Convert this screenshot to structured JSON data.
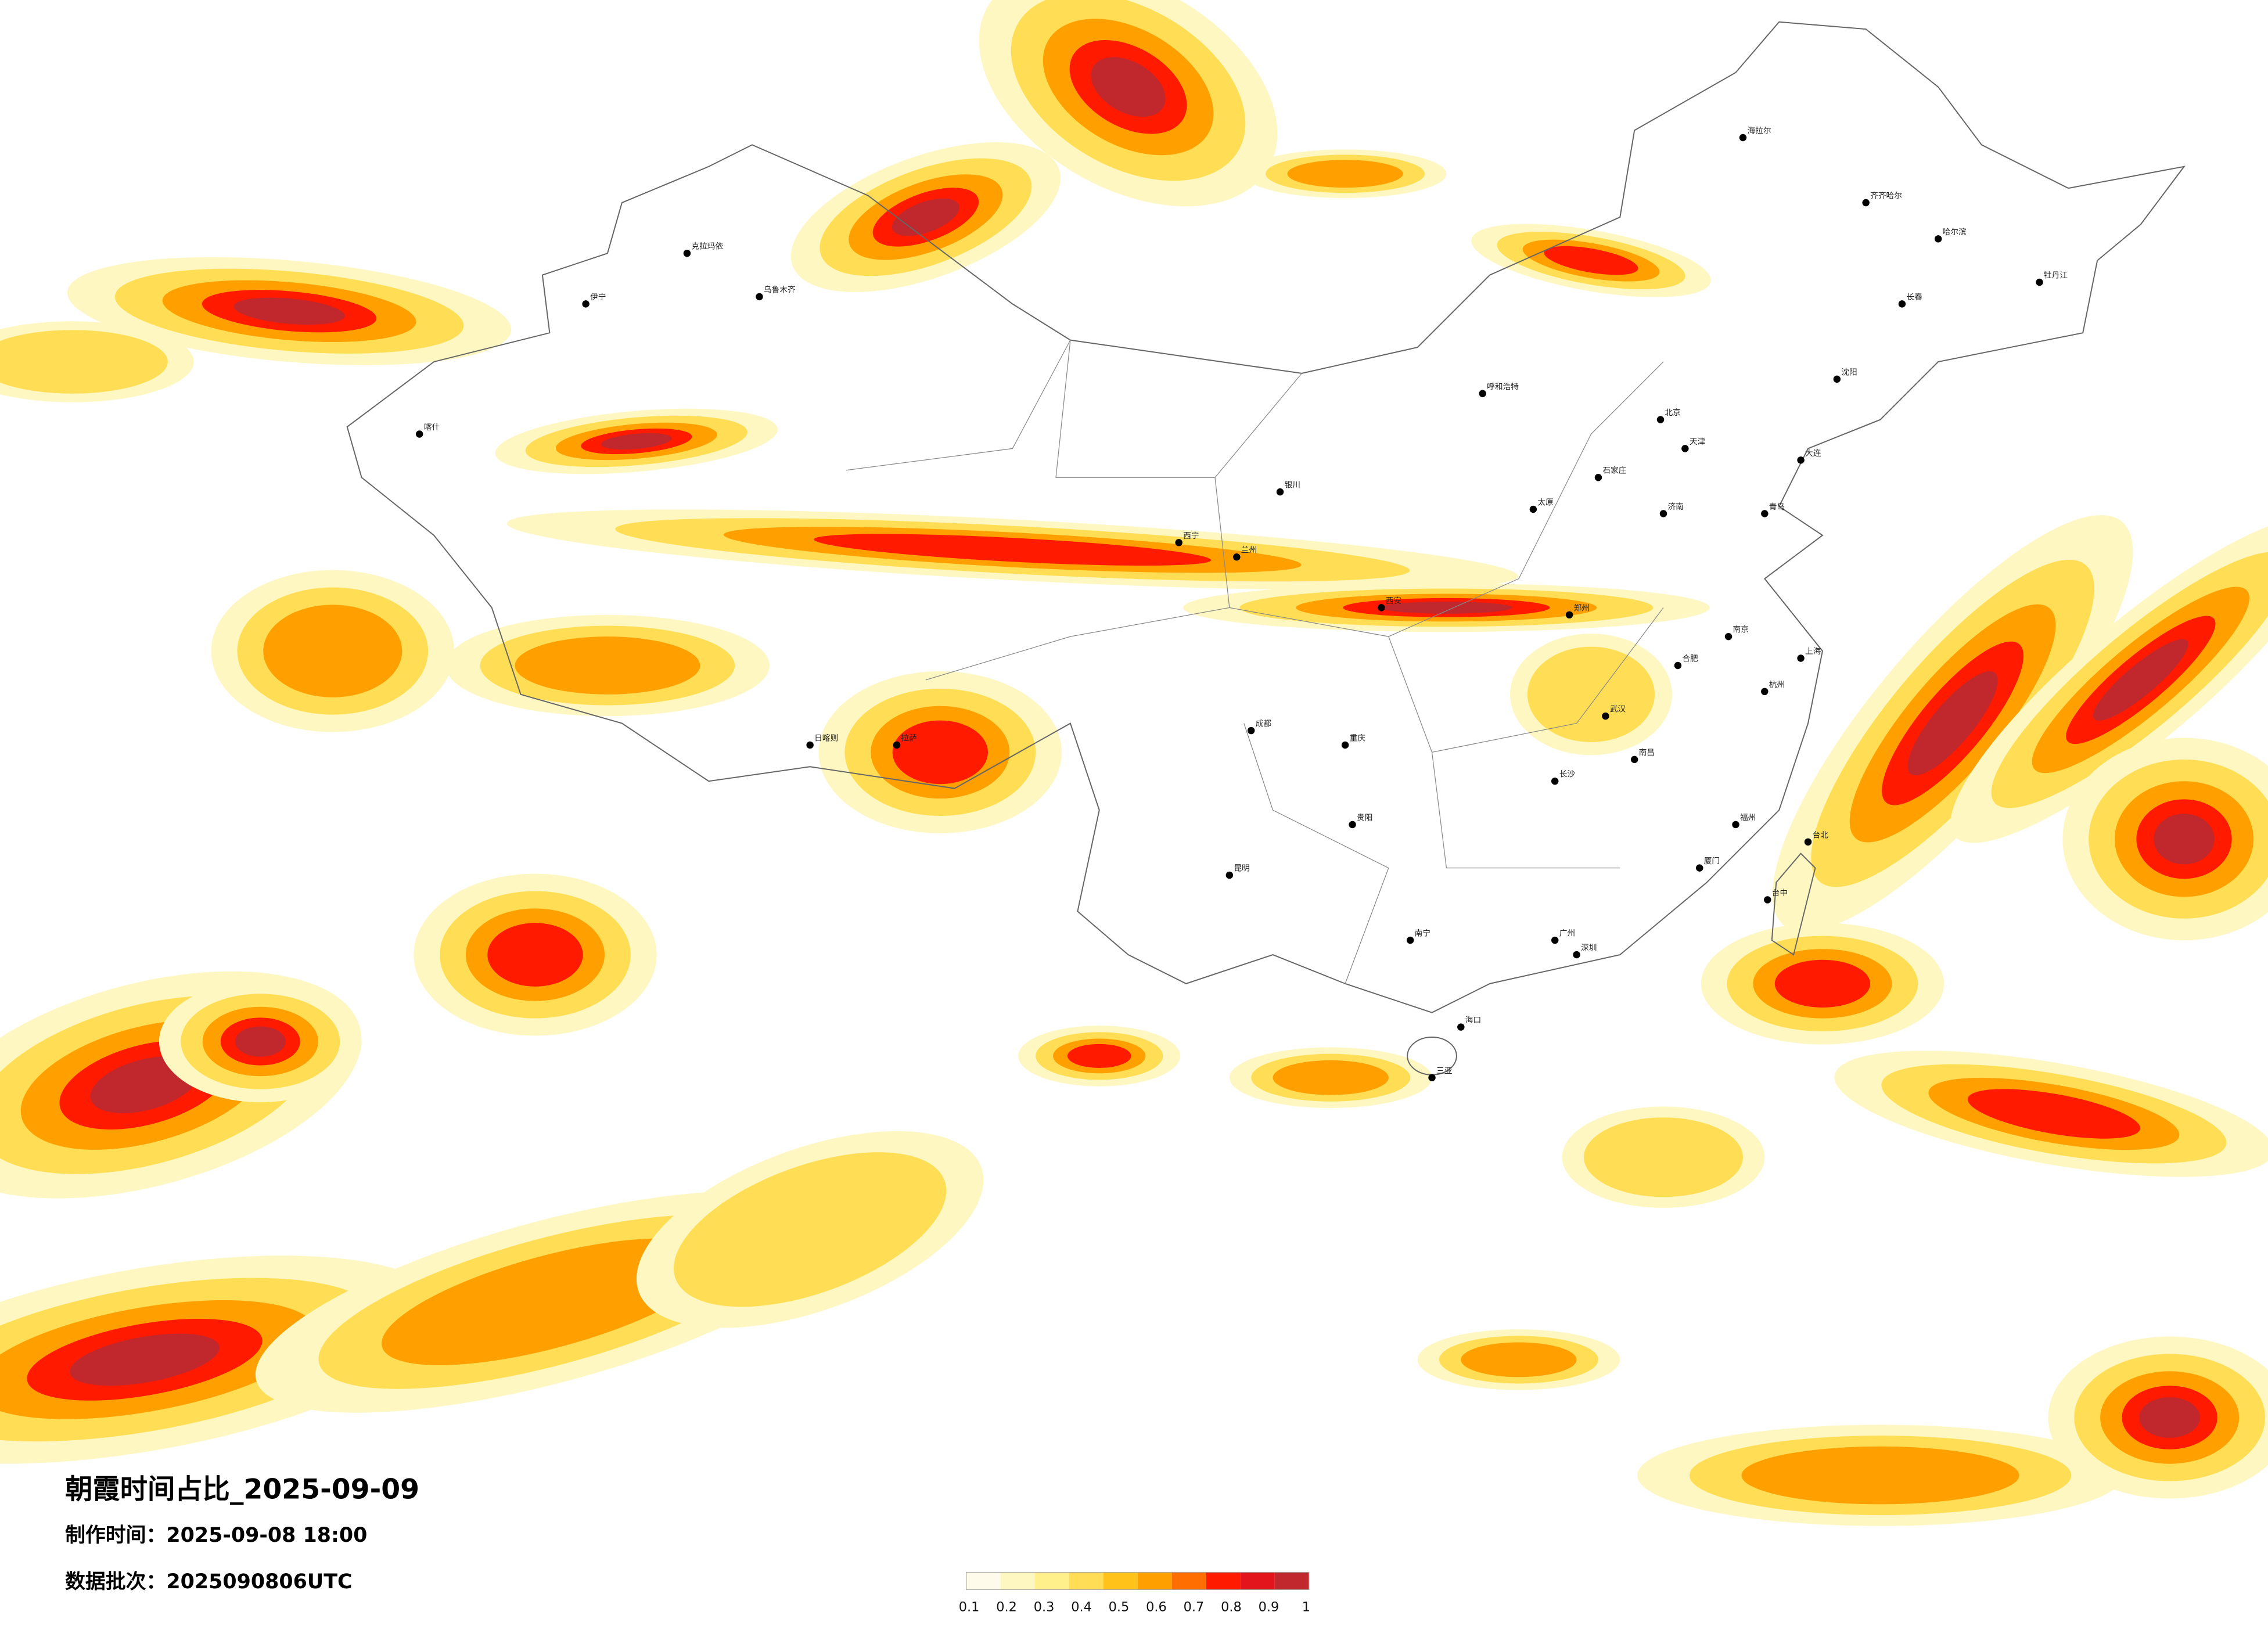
{
  "header": {
    "title": "朝霞时间占比_2025-09-09",
    "made": "制作时间：2025-09-08 18:00",
    "batch": "数据批次：2025090806UTC"
  },
  "colorbar": {
    "colors": [
      "#fffbea",
      "#fff7c2",
      "#fff08c",
      "#ffde55",
      "#ffc21a",
      "#ff9f00",
      "#ff6e00",
      "#ff1a00",
      "#e3141c",
      "#c0282d"
    ],
    "ticks": [
      0.1,
      0.2,
      0.3,
      0.4,
      0.5,
      0.6,
      0.7,
      0.8,
      0.9,
      1
    ]
  },
  "cities": [
    "北京",
    "天津",
    "石家庄",
    "太原",
    "郑州",
    "西安",
    "武汉",
    "长沙",
    "南昌",
    "广州",
    "深圳",
    "南宁",
    "昆明",
    "贵阳",
    "成都",
    "重庆",
    "兰州",
    "西宁",
    "银川",
    "呼和浩特",
    "乌鲁木齐",
    "拉萨",
    "哈尔滨",
    "长春",
    "沈阳",
    "大连",
    "济南",
    "青岛",
    "南京",
    "上海",
    "杭州",
    "福州",
    "厦门",
    "台北",
    "台中",
    "海口",
    "三亚",
    "合肥",
    "喀什",
    "伊宁",
    "克拉玛依",
    "日喀则",
    "海拉尔",
    "齐齐哈尔",
    "牡丹江"
  ]
}
